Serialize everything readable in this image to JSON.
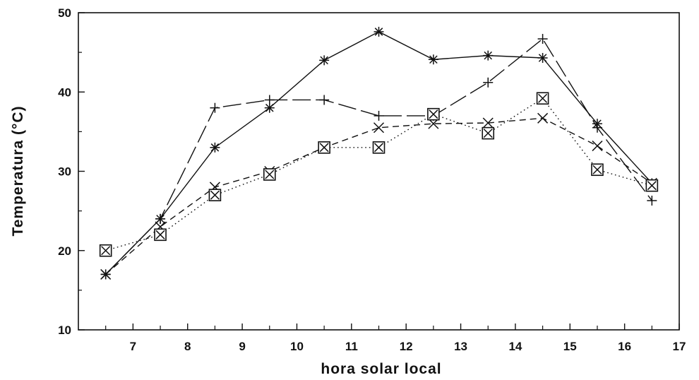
{
  "chart_data": {
    "type": "line",
    "xlabel": "hora solar local",
    "ylabel": "Temperatura (°C)",
    "xlim": [
      6,
      17
    ],
    "ylim": [
      10,
      50
    ],
    "xticks": [
      7,
      8,
      9,
      10,
      11,
      12,
      13,
      14,
      15,
      16,
      17
    ],
    "yticks": [
      10,
      20,
      30,
      40,
      50
    ],
    "x": [
      6.5,
      7.5,
      8.5,
      9.5,
      10.5,
      11.5,
      12.5,
      13.5,
      14.5,
      15.5,
      16.5
    ],
    "grid": false,
    "series": [
      {
        "marker": "asterisk",
        "line": "solid",
        "values": [
          17,
          24,
          33,
          38,
          44,
          47.6,
          44.1,
          44.6,
          44.3,
          36,
          28.5
        ]
      },
      {
        "marker": "plus",
        "line": "long-dash",
        "values": [
          17,
          24,
          38,
          39,
          39,
          37,
          37,
          41.2,
          46.7,
          35.5,
          26.3
        ]
      },
      {
        "marker": "x",
        "line": "dashed",
        "values": [
          17,
          23,
          28,
          30,
          33,
          35.5,
          36,
          36.1,
          36.7,
          33.2,
          28.5
        ]
      },
      {
        "marker": "boxed-x",
        "line": "dotted",
        "values": [
          20,
          22,
          27,
          29.6,
          33,
          33,
          37.2,
          34.8,
          39.2,
          30.2,
          28.2
        ]
      }
    ]
  }
}
